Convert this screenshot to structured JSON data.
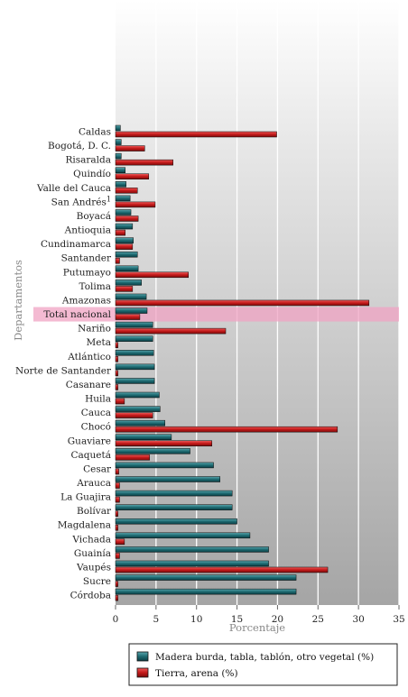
{
  "chart_data": {
    "type": "bar",
    "orientation": "horizontal",
    "title": "",
    "xlabel": "Porcentaje",
    "ylabel": "Departamentos",
    "xlim": [
      0,
      35
    ],
    "xticks": [
      0,
      5,
      10,
      15,
      20,
      25,
      30,
      35
    ],
    "grid": true,
    "legend_position": "bottom-right",
    "highlight_category": "Total nacional",
    "categories": [
      "Caldas",
      "Bogotá, D. C.",
      "Risaralda",
      "Quindío",
      "Valle del Cauca",
      "San Andrés",
      "Boyacá",
      "Antioquia",
      "Cundinamarca",
      "Santander",
      "Putumayo",
      "Tolima",
      "Amazonas",
      "Total nacional",
      "Nariño",
      "Meta",
      "Atlántico",
      "Norte de Santander",
      "Casanare",
      "Huila",
      "Cauca",
      "Chocó",
      "Guaviare",
      "Caquetá",
      "Cesar",
      "Arauca",
      "La Guajira",
      "Bolívar",
      "Magdalena",
      "Vichada",
      "Guainía",
      "Vaupés",
      "Sucre",
      "Córdoba"
    ],
    "category_superscripts": {
      "San Andrés": "1"
    },
    "series": [
      {
        "name": "Madera burda, tabla, tablón, otro vegetal (%)",
        "color": "#1e6b72",
        "values": [
          0.6,
          0.7,
          0.7,
          1.2,
          1.3,
          1.8,
          1.9,
          2.1,
          2.2,
          2.7,
          2.8,
          3.2,
          3.8,
          3.9,
          4.6,
          4.6,
          4.7,
          4.8,
          4.8,
          5.4,
          5.5,
          6.1,
          6.9,
          9.2,
          12.1,
          12.9,
          14.4,
          14.4,
          15.0,
          16.6,
          18.9,
          18.9,
          22.3,
          22.3
        ]
      },
      {
        "name": "Tierra, arena (%)",
        "color": "#c41a1a",
        "values": [
          19.9,
          3.6,
          7.1,
          4.1,
          2.7,
          4.9,
          2.8,
          1.2,
          2.1,
          0.5,
          9.0,
          2.1,
          31.3,
          3.0,
          13.6,
          0.3,
          0.3,
          0.3,
          0.3,
          1.1,
          4.6,
          27.4,
          11.9,
          4.2,
          0.4,
          0.5,
          0.5,
          0.3,
          0.3,
          1.1,
          0.5,
          26.2,
          0.3,
          0.3
        ]
      }
    ]
  }
}
